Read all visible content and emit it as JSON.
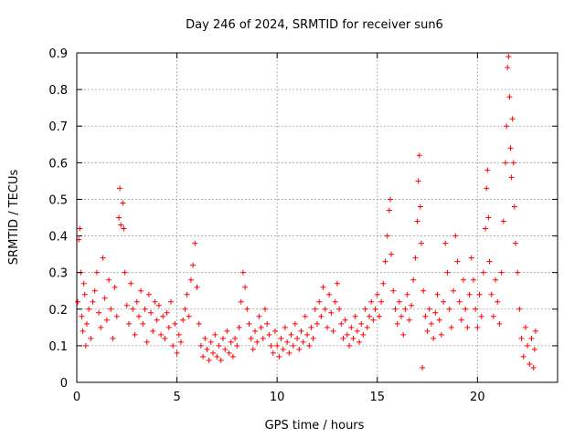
{
  "chart_data": {
    "type": "scatter",
    "title": "Day 246 of 2024, SRMTID for receiver sun6",
    "xlabel": "GPS time / hours",
    "ylabel": "SRMTID / TECUs",
    "xlim": [
      0,
      24
    ],
    "ylim": [
      0,
      0.9
    ],
    "xticks": [
      0,
      5,
      10,
      15,
      20
    ],
    "xtick_labels": [
      "0",
      "5",
      "10",
      "15",
      "20"
    ],
    "yticks": [
      0,
      0.1,
      0.2,
      0.3,
      0.4,
      0.5,
      0.6,
      0.7,
      0.8,
      0.9
    ],
    "ytick_labels": [
      "0",
      "0.1",
      "0.2",
      "0.3",
      "0.4",
      "0.5",
      "0.6",
      "0.7",
      "0.8",
      "0.9"
    ],
    "grid": true,
    "marker": "plus",
    "color": "#ff0000",
    "series": [
      {
        "name": "SRMTID",
        "points": [
          [
            0.05,
            0.22
          ],
          [
            0.1,
            0.39
          ],
          [
            0.15,
            0.42
          ],
          [
            0.2,
            0.3
          ],
          [
            0.25,
            0.18
          ],
          [
            0.3,
            0.14
          ],
          [
            0.35,
            0.27
          ],
          [
            0.4,
            0.24
          ],
          [
            0.45,
            0.1
          ],
          [
            0.5,
            0.16
          ],
          [
            0.6,
            0.2
          ],
          [
            0.7,
            0.12
          ],
          [
            0.8,
            0.22
          ],
          [
            0.9,
            0.25
          ],
          [
            1.0,
            0.3
          ],
          [
            1.1,
            0.19
          ],
          [
            1.2,
            0.15
          ],
          [
            1.3,
            0.34
          ],
          [
            1.4,
            0.23
          ],
          [
            1.5,
            0.17
          ],
          [
            1.6,
            0.28
          ],
          [
            1.7,
            0.2
          ],
          [
            1.8,
            0.12
          ],
          [
            1.9,
            0.26
          ],
          [
            2.0,
            0.18
          ],
          [
            2.1,
            0.45
          ],
          [
            2.15,
            0.53
          ],
          [
            2.2,
            0.43
          ],
          [
            2.3,
            0.49
          ],
          [
            2.35,
            0.42
          ],
          [
            2.4,
            0.3
          ],
          [
            2.5,
            0.21
          ],
          [
            2.6,
            0.16
          ],
          [
            2.7,
            0.27
          ],
          [
            2.8,
            0.2
          ],
          [
            2.9,
            0.13
          ],
          [
            3.0,
            0.22
          ],
          [
            3.1,
            0.18
          ],
          [
            3.2,
            0.25
          ],
          [
            3.3,
            0.16
          ],
          [
            3.4,
            0.2
          ],
          [
            3.5,
            0.11
          ],
          [
            3.6,
            0.24
          ],
          [
            3.7,
            0.19
          ],
          [
            3.8,
            0.14
          ],
          [
            3.9,
            0.22
          ],
          [
            4.0,
            0.17
          ],
          [
            4.1,
            0.21
          ],
          [
            4.2,
            0.13
          ],
          [
            4.3,
            0.18
          ],
          [
            4.4,
            0.12
          ],
          [
            4.5,
            0.19
          ],
          [
            4.6,
            0.15
          ],
          [
            4.7,
            0.22
          ],
          [
            4.8,
            0.1
          ],
          [
            4.9,
            0.16
          ],
          [
            5.0,
            0.08
          ],
          [
            5.1,
            0.13
          ],
          [
            5.2,
            0.11
          ],
          [
            5.3,
            0.17
          ],
          [
            5.4,
            0.2
          ],
          [
            5.5,
            0.24
          ],
          [
            5.6,
            0.18
          ],
          [
            5.7,
            0.28
          ],
          [
            5.8,
            0.32
          ],
          [
            5.9,
            0.38
          ],
          [
            6.0,
            0.26
          ],
          [
            6.1,
            0.16
          ],
          [
            6.2,
            0.1
          ],
          [
            6.3,
            0.07
          ],
          [
            6.4,
            0.12
          ],
          [
            6.5,
            0.09
          ],
          [
            6.6,
            0.06
          ],
          [
            6.7,
            0.11
          ],
          [
            6.8,
            0.08
          ],
          [
            6.9,
            0.13
          ],
          [
            7.0,
            0.07
          ],
          [
            7.1,
            0.1
          ],
          [
            7.2,
            0.06
          ],
          [
            7.3,
            0.12
          ],
          [
            7.4,
            0.09
          ],
          [
            7.5,
            0.14
          ],
          [
            7.6,
            0.08
          ],
          [
            7.7,
            0.11
          ],
          [
            7.8,
            0.07
          ],
          [
            7.9,
            0.12
          ],
          [
            8.0,
            0.1
          ],
          [
            8.1,
            0.15
          ],
          [
            8.2,
            0.22
          ],
          [
            8.3,
            0.3
          ],
          [
            8.4,
            0.26
          ],
          [
            8.5,
            0.2
          ],
          [
            8.6,
            0.16
          ],
          [
            8.7,
            0.12
          ],
          [
            8.8,
            0.09
          ],
          [
            8.9,
            0.14
          ],
          [
            9.0,
            0.11
          ],
          [
            9.1,
            0.18
          ],
          [
            9.2,
            0.15
          ],
          [
            9.3,
            0.12
          ],
          [
            9.4,
            0.2
          ],
          [
            9.5,
            0.16
          ],
          [
            9.6,
            0.13
          ],
          [
            9.7,
            0.1
          ],
          [
            9.8,
            0.08
          ],
          [
            9.9,
            0.14
          ],
          [
            10.0,
            0.1
          ],
          [
            10.1,
            0.07
          ],
          [
            10.2,
            0.12
          ],
          [
            10.3,
            0.09
          ],
          [
            10.4,
            0.15
          ],
          [
            10.5,
            0.11
          ],
          [
            10.6,
            0.08
          ],
          [
            10.7,
            0.13
          ],
          [
            10.8,
            0.1
          ],
          [
            10.9,
            0.16
          ],
          [
            11.0,
            0.12
          ],
          [
            11.1,
            0.09
          ],
          [
            11.2,
            0.14
          ],
          [
            11.3,
            0.11
          ],
          [
            11.4,
            0.18
          ],
          [
            11.5,
            0.13
          ],
          [
            11.6,
            0.1
          ],
          [
            11.7,
            0.15
          ],
          [
            11.8,
            0.12
          ],
          [
            11.9,
            0.2
          ],
          [
            12.0,
            0.16
          ],
          [
            12.1,
            0.22
          ],
          [
            12.2,
            0.18
          ],
          [
            12.3,
            0.26
          ],
          [
            12.4,
            0.2
          ],
          [
            12.5,
            0.15
          ],
          [
            12.6,
            0.24
          ],
          [
            12.7,
            0.19
          ],
          [
            12.8,
            0.14
          ],
          [
            12.9,
            0.22
          ],
          [
            13.0,
            0.27
          ],
          [
            13.1,
            0.2
          ],
          [
            13.2,
            0.16
          ],
          [
            13.3,
            0.12
          ],
          [
            13.4,
            0.17
          ],
          [
            13.5,
            0.13
          ],
          [
            13.6,
            0.1
          ],
          [
            13.7,
            0.15
          ],
          [
            13.8,
            0.12
          ],
          [
            13.9,
            0.18
          ],
          [
            14.0,
            0.14
          ],
          [
            14.1,
            0.11
          ],
          [
            14.2,
            0.16
          ],
          [
            14.3,
            0.13
          ],
          [
            14.4,
            0.2
          ],
          [
            14.5,
            0.15
          ],
          [
            14.6,
            0.18
          ],
          [
            14.7,
            0.22
          ],
          [
            14.8,
            0.17
          ],
          [
            14.9,
            0.2
          ],
          [
            15.0,
            0.24
          ],
          [
            15.1,
            0.18
          ],
          [
            15.2,
            0.22
          ],
          [
            15.3,
            0.27
          ],
          [
            15.4,
            0.33
          ],
          [
            15.5,
            0.4
          ],
          [
            15.6,
            0.47
          ],
          [
            15.65,
            0.5
          ],
          [
            15.7,
            0.35
          ],
          [
            15.8,
            0.25
          ],
          [
            15.9,
            0.2
          ],
          [
            16.0,
            0.16
          ],
          [
            16.1,
            0.22
          ],
          [
            16.2,
            0.18
          ],
          [
            16.3,
            0.13
          ],
          [
            16.4,
            0.2
          ],
          [
            16.5,
            0.24
          ],
          [
            16.6,
            0.17
          ],
          [
            16.7,
            0.21
          ],
          [
            16.8,
            0.28
          ],
          [
            16.9,
            0.34
          ],
          [
            17.0,
            0.44
          ],
          [
            17.05,
            0.55
          ],
          [
            17.1,
            0.62
          ],
          [
            17.15,
            0.48
          ],
          [
            17.2,
            0.38
          ],
          [
            17.25,
            0.04
          ],
          [
            17.3,
            0.25
          ],
          [
            17.4,
            0.18
          ],
          [
            17.5,
            0.14
          ],
          [
            17.6,
            0.2
          ],
          [
            17.7,
            0.16
          ],
          [
            17.8,
            0.12
          ],
          [
            17.9,
            0.19
          ],
          [
            18.0,
            0.24
          ],
          [
            18.1,
            0.17
          ],
          [
            18.2,
            0.13
          ],
          [
            18.3,
            0.22
          ],
          [
            18.4,
            0.38
          ],
          [
            18.5,
            0.3
          ],
          [
            18.6,
            0.2
          ],
          [
            18.7,
            0.15
          ],
          [
            18.8,
            0.25
          ],
          [
            18.9,
            0.4
          ],
          [
            19.0,
            0.33
          ],
          [
            19.1,
            0.22
          ],
          [
            19.2,
            0.17
          ],
          [
            19.3,
            0.28
          ],
          [
            19.4,
            0.2
          ],
          [
            19.5,
            0.15
          ],
          [
            19.6,
            0.24
          ],
          [
            19.7,
            0.34
          ],
          [
            19.8,
            0.28
          ],
          [
            19.9,
            0.2
          ],
          [
            20.0,
            0.15
          ],
          [
            20.1,
            0.24
          ],
          [
            20.2,
            0.18
          ],
          [
            20.3,
            0.3
          ],
          [
            20.4,
            0.42
          ],
          [
            20.45,
            0.53
          ],
          [
            20.5,
            0.58
          ],
          [
            20.55,
            0.45
          ],
          [
            20.6,
            0.33
          ],
          [
            20.7,
            0.24
          ],
          [
            20.8,
            0.18
          ],
          [
            20.9,
            0.28
          ],
          [
            21.0,
            0.22
          ],
          [
            21.1,
            0.16
          ],
          [
            21.2,
            0.3
          ],
          [
            21.3,
            0.44
          ],
          [
            21.4,
            0.6
          ],
          [
            21.45,
            0.7
          ],
          [
            21.5,
            0.86
          ],
          [
            21.55,
            0.89
          ],
          [
            21.6,
            0.78
          ],
          [
            21.65,
            0.64
          ],
          [
            21.7,
            0.56
          ],
          [
            21.75,
            0.72
          ],
          [
            21.8,
            0.6
          ],
          [
            21.85,
            0.48
          ],
          [
            21.9,
            0.38
          ],
          [
            22.0,
            0.3
          ],
          [
            22.1,
            0.2
          ],
          [
            22.2,
            0.12
          ],
          [
            22.3,
            0.07
          ],
          [
            22.4,
            0.15
          ],
          [
            22.5,
            0.1
          ],
          [
            22.6,
            0.05
          ],
          [
            22.7,
            0.12
          ],
          [
            22.8,
            0.04
          ],
          [
            22.85,
            0.09
          ],
          [
            22.9,
            0.14
          ]
        ]
      }
    ]
  }
}
